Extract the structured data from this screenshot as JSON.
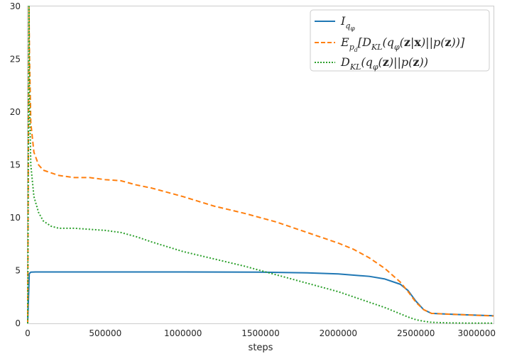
{
  "chart_data": {
    "type": "line",
    "xlabel": "steps",
    "ylabel": "",
    "xlim": [
      0,
      3000000
    ],
    "ylim": [
      0,
      30
    ],
    "grid": false,
    "legend_position": "top-right",
    "x_ticks": [
      0,
      500000,
      1000000,
      1500000,
      2000000,
      2500000,
      3000000
    ],
    "x_tick_labels": [
      "0",
      "500000",
      "1000000",
      "1500000",
      "2000000",
      "2500000",
      "3000000"
    ],
    "y_ticks": [
      0,
      5,
      10,
      15,
      20,
      25,
      30
    ],
    "y_tick_labels": [
      "0",
      "5",
      "10",
      "15",
      "20",
      "25",
      "30"
    ],
    "series": [
      {
        "name": "I_{q_φ}",
        "color": "#1f77b4",
        "dash": "solid",
        "x": [
          0,
          10000,
          20000,
          50000,
          100000,
          300000,
          500000,
          1000000,
          1500000,
          1800000,
          2000000,
          2200000,
          2300000,
          2400000,
          2450000,
          2500000,
          2550000,
          2600000,
          2700000,
          2800000,
          3000000
        ],
        "y": [
          0,
          4.7,
          4.85,
          4.87,
          4.87,
          4.87,
          4.87,
          4.87,
          4.85,
          4.78,
          4.68,
          4.45,
          4.2,
          3.7,
          3.1,
          2.1,
          1.3,
          0.95,
          0.88,
          0.82,
          0.72
        ]
      },
      {
        "name": "E_{p_d}[D_{KL}(q_φ(z|x)||p(z))]",
        "color": "#ff7f0e",
        "dash": "dashed",
        "x": [
          0,
          8000,
          12000,
          20000,
          40000,
          70000,
          100000,
          200000,
          300000,
          400000,
          500000,
          600000,
          700000,
          800000,
          1000000,
          1200000,
          1400000,
          1600000,
          1800000,
          2000000,
          2100000,
          2200000,
          2300000,
          2400000,
          2450000,
          2500000,
          2550000,
          2600000,
          2700000,
          2800000,
          3000000
        ],
        "y": [
          0,
          30,
          25,
          19,
          16.2,
          15.0,
          14.5,
          14.0,
          13.8,
          13.8,
          13.6,
          13.5,
          13.1,
          12.8,
          12.0,
          11.1,
          10.4,
          9.6,
          8.6,
          7.6,
          7.0,
          6.2,
          5.2,
          3.9,
          3.0,
          2.0,
          1.3,
          0.95,
          0.88,
          0.82,
          0.7
        ]
      },
      {
        "name": "D_{KL}(q_φ(z)||p(z))",
        "color": "#2ca02c",
        "dash": "dotted",
        "x": [
          0,
          8000,
          12000,
          20000,
          40000,
          70000,
          100000,
          150000,
          200000,
          300000,
          400000,
          500000,
          600000,
          700000,
          800000,
          1000000,
          1200000,
          1400000,
          1500000,
          1600000,
          1800000,
          2000000,
          2100000,
          2200000,
          2300000,
          2400000,
          2450000,
          2500000,
          2550000,
          2600000,
          2700000,
          2800000,
          3000000
        ],
        "y": [
          0,
          30,
          21,
          15,
          12.0,
          10.5,
          9.7,
          9.2,
          9.0,
          9.0,
          8.9,
          8.8,
          8.6,
          8.2,
          7.7,
          6.8,
          6.1,
          5.4,
          5.0,
          4.6,
          3.8,
          3.0,
          2.5,
          2.0,
          1.5,
          0.9,
          0.6,
          0.35,
          0.2,
          0.1,
          0.05,
          0.03,
          0.02
        ]
      }
    ]
  },
  "legend": [
    {
      "key": "iq"
    },
    {
      "key": "ekl"
    },
    {
      "key": "dkl"
    }
  ]
}
